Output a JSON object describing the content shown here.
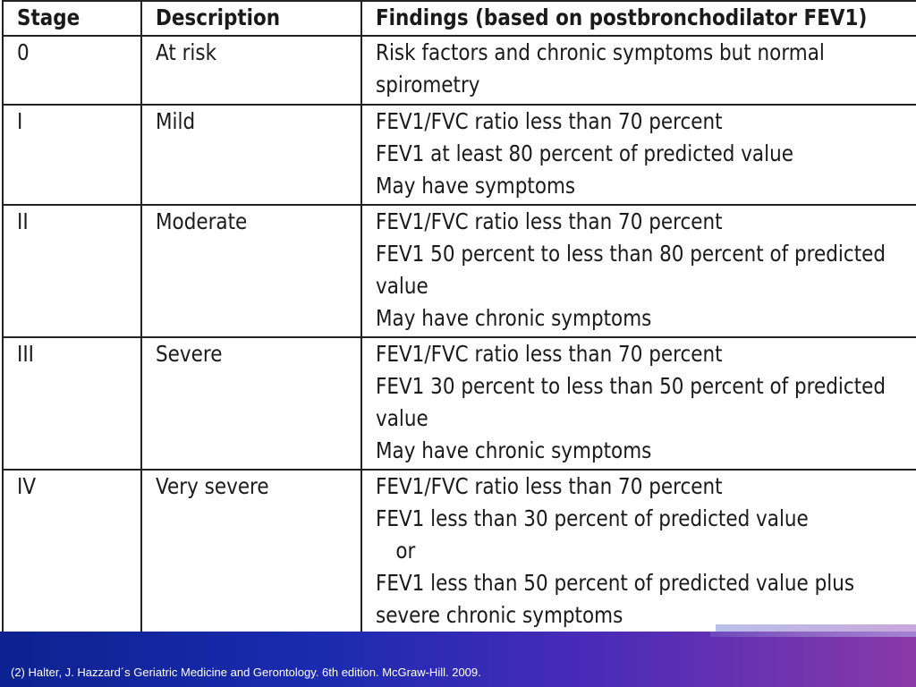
{
  "table": {
    "headers": {
      "stage": "Stage",
      "description": "Description",
      "findings": "Findings (based on postbronchodilator FEV1)"
    },
    "rows": [
      {
        "stage": "0",
        "description": "At risk",
        "findings": [
          "Risk factors and chronic symptoms but normal",
          "spirometry"
        ]
      },
      {
        "stage": "I",
        "description": "Mild",
        "findings": [
          "FEV1/FVC ratio less than 70 percent",
          "FEV1 at least 80 percent of predicted value",
          "May have symptoms"
        ]
      },
      {
        "stage": "II",
        "description": "Moderate",
        "findings": [
          "FEV1/FVC ratio less than 70 percent",
          "FEV1 50 percent to less than 80 percent of predicted",
          "value",
          "May have chronic symptoms"
        ]
      },
      {
        "stage": "III",
        "description": "Severe",
        "findings": [
          "FEV1/FVC ratio less than 70 percent",
          "FEV1 30 percent to less than 50 percent of predicted",
          "value",
          "May have chronic symptoms"
        ]
      },
      {
        "stage": "IV",
        "description": "Very severe",
        "findings": [
          "FEV1/FVC ratio less than 70 percent",
          "FEV1 less than 30 percent of predicted value",
          "or",
          "FEV1 less than 50 percent of predicted value plus",
          "severe chronic symptoms"
        ]
      }
    ]
  },
  "footer": {
    "citation": "(2) Halter, J. Hazzard´s Geriatric Medicine and Gerontology. 6th edition. McGraw-Hill. 2009."
  },
  "colors": {
    "footer_start": "#0d2290",
    "footer_end": "#8a3aa8",
    "border": "#222222"
  }
}
